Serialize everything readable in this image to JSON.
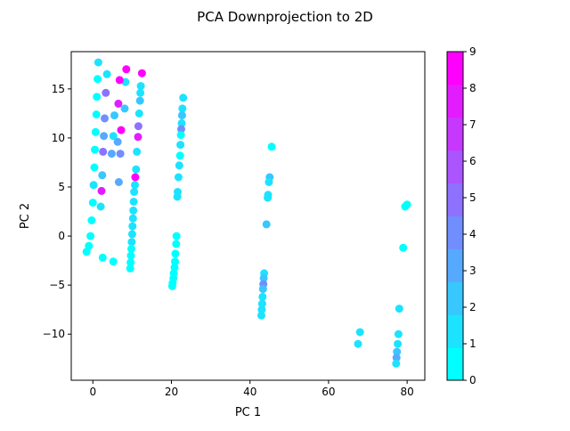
{
  "chart_data": {
    "type": "scatter",
    "title": "PCA Downprojection to 2D",
    "xlabel": "PC 1",
    "ylabel": "PC 2",
    "xlim": [
      -5.5,
      84.5
    ],
    "ylim": [
      -14.7,
      18.8
    ],
    "xticks": [
      0,
      20,
      40,
      60,
      80
    ],
    "yticks": [
      -10,
      -5,
      0,
      5,
      10,
      15
    ],
    "grid": false,
    "legend": "none",
    "colorbar": {
      "label": "",
      "min": 0,
      "max": 9,
      "ticks": [
        0,
        1,
        2,
        3,
        4,
        5,
        6,
        7,
        8,
        9
      ],
      "colormap": "cool",
      "bands": [
        "#00ffff",
        "#1ce3ff",
        "#38c7ff",
        "#55aaff",
        "#718eff",
        "#8e71ff",
        "#aa55ff",
        "#c738ff",
        "#e31cff",
        "#ff00ff"
      ]
    },
    "points": [
      {
        "x": 80,
        "y": 3.2,
        "c": 0
      },
      {
        "x": 79.5,
        "y": 3.0,
        "c": 0
      },
      {
        "x": 79,
        "y": -1.2,
        "c": 0
      },
      {
        "x": 78,
        "y": -7.4,
        "c": 1
      },
      {
        "x": 77.8,
        "y": -10.0,
        "c": 1
      },
      {
        "x": 77.6,
        "y": -11.0,
        "c": 1
      },
      {
        "x": 77.4,
        "y": -11.8,
        "c": 2
      },
      {
        "x": 77.3,
        "y": -12.4,
        "c": 3
      },
      {
        "x": 77.2,
        "y": -13.0,
        "c": 1
      },
      {
        "x": 68,
        "y": -9.8,
        "c": 1
      },
      {
        "x": 67.5,
        "y": -11.0,
        "c": 1
      },
      {
        "x": 45.5,
        "y": 9.1,
        "c": 0
      },
      {
        "x": 45,
        "y": 6.0,
        "c": 2
      },
      {
        "x": 44.8,
        "y": 5.5,
        "c": 1
      },
      {
        "x": 44.6,
        "y": 4.2,
        "c": 1
      },
      {
        "x": 44.5,
        "y": 3.9,
        "c": 1
      },
      {
        "x": 44.2,
        "y": 1.2,
        "c": 2
      },
      {
        "x": 43.6,
        "y": -3.8,
        "c": 1
      },
      {
        "x": 43.5,
        "y": -4.3,
        "c": 2
      },
      {
        "x": 43.4,
        "y": -4.9,
        "c": 4
      },
      {
        "x": 43.3,
        "y": -5.4,
        "c": 2
      },
      {
        "x": 43.2,
        "y": -6.2,
        "c": 1
      },
      {
        "x": 43.1,
        "y": -6.9,
        "c": 1
      },
      {
        "x": 43.0,
        "y": -7.5,
        "c": 1
      },
      {
        "x": 42.9,
        "y": -8.1,
        "c": 1
      },
      {
        "x": 23,
        "y": 14.1,
        "c": 1
      },
      {
        "x": 22.8,
        "y": 13.0,
        "c": 1
      },
      {
        "x": 22.7,
        "y": 12.3,
        "c": 2
      },
      {
        "x": 22.6,
        "y": 11.5,
        "c": 1
      },
      {
        "x": 22.5,
        "y": 10.9,
        "c": 4
      },
      {
        "x": 22.4,
        "y": 10.3,
        "c": 0
      },
      {
        "x": 22.3,
        "y": 9.3,
        "c": 1
      },
      {
        "x": 22.2,
        "y": 8.2,
        "c": 0
      },
      {
        "x": 22.0,
        "y": 7.2,
        "c": 1
      },
      {
        "x": 21.8,
        "y": 6.0,
        "c": 1
      },
      {
        "x": 21.6,
        "y": 4.5,
        "c": 1
      },
      {
        "x": 21.5,
        "y": 4.0,
        "c": 1
      },
      {
        "x": 21.3,
        "y": 0.0,
        "c": 0
      },
      {
        "x": 21.2,
        "y": -0.8,
        "c": 0
      },
      {
        "x": 21.0,
        "y": -1.8,
        "c": 0
      },
      {
        "x": 20.9,
        "y": -2.6,
        "c": 0
      },
      {
        "x": 20.8,
        "y": -3.2,
        "c": 0
      },
      {
        "x": 20.6,
        "y": -3.8,
        "c": 0
      },
      {
        "x": 20.5,
        "y": -4.3,
        "c": 0
      },
      {
        "x": 20.3,
        "y": -4.8,
        "c": 0
      },
      {
        "x": 20.2,
        "y": -5.1,
        "c": 0
      },
      {
        "x": 12.5,
        "y": 16.6,
        "c": 9
      },
      {
        "x": 12.2,
        "y": 15.3,
        "c": 1
      },
      {
        "x": 12.1,
        "y": 14.6,
        "c": 1
      },
      {
        "x": 12.0,
        "y": 13.8,
        "c": 2
      },
      {
        "x": 11.8,
        "y": 12.5,
        "c": 1
      },
      {
        "x": 11.6,
        "y": 11.2,
        "c": 5
      },
      {
        "x": 11.5,
        "y": 10.1,
        "c": 8
      },
      {
        "x": 11.2,
        "y": 8.6,
        "c": 1
      },
      {
        "x": 11.0,
        "y": 6.8,
        "c": 1
      },
      {
        "x": 10.8,
        "y": 6.0,
        "c": 9
      },
      {
        "x": 10.7,
        "y": 5.2,
        "c": 1
      },
      {
        "x": 10.5,
        "y": 4.5,
        "c": 1
      },
      {
        "x": 10.4,
        "y": 3.5,
        "c": 1
      },
      {
        "x": 10.3,
        "y": 2.6,
        "c": 1
      },
      {
        "x": 10.2,
        "y": 1.8,
        "c": 1
      },
      {
        "x": 10.1,
        "y": 1.0,
        "c": 1
      },
      {
        "x": 10.0,
        "y": 0.2,
        "c": 1
      },
      {
        "x": 9.9,
        "y": -0.6,
        "c": 1
      },
      {
        "x": 9.8,
        "y": -1.3,
        "c": 0
      },
      {
        "x": 9.7,
        "y": -2.0,
        "c": 0
      },
      {
        "x": 9.6,
        "y": -2.7,
        "c": 0
      },
      {
        "x": 9.5,
        "y": -3.3,
        "c": 0
      },
      {
        "x": 8.5,
        "y": 17.0,
        "c": 9
      },
      {
        "x": 8.3,
        "y": 15.7,
        "c": 1
      },
      {
        "x": 8.1,
        "y": 13.0,
        "c": 2
      },
      {
        "x": 6.8,
        "y": 15.9,
        "c": 9
      },
      {
        "x": 6.5,
        "y": 13.5,
        "c": 8
      },
      {
        "x": 7.2,
        "y": 10.8,
        "c": 9
      },
      {
        "x": 6.3,
        "y": 9.6,
        "c": 3
      },
      {
        "x": 7.0,
        "y": 8.4,
        "c": 4
      },
      {
        "x": 6.6,
        "y": 5.5,
        "c": 3
      },
      {
        "x": 5.5,
        "y": 12.3,
        "c": 2
      },
      {
        "x": 5.2,
        "y": 10.2,
        "c": 1
      },
      {
        "x": 4.8,
        "y": 8.4,
        "c": 3
      },
      {
        "x": 3.6,
        "y": 16.5,
        "c": 1
      },
      {
        "x": 3.3,
        "y": 14.6,
        "c": 5
      },
      {
        "x": 3.0,
        "y": 12.0,
        "c": 4
      },
      {
        "x": 2.8,
        "y": 10.2,
        "c": 3
      },
      {
        "x": 2.6,
        "y": 8.6,
        "c": 5
      },
      {
        "x": 2.4,
        "y": 6.2,
        "c": 2
      },
      {
        "x": 2.2,
        "y": 4.6,
        "c": 8
      },
      {
        "x": 2.0,
        "y": 3.0,
        "c": 1
      },
      {
        "x": 1.4,
        "y": 17.7,
        "c": 1
      },
      {
        "x": 1.2,
        "y": 16.0,
        "c": 0
      },
      {
        "x": 1.0,
        "y": 14.2,
        "c": 0
      },
      {
        "x": 0.9,
        "y": 12.4,
        "c": 0
      },
      {
        "x": 0.7,
        "y": 10.6,
        "c": 0
      },
      {
        "x": 0.5,
        "y": 8.8,
        "c": 0
      },
      {
        "x": 0.4,
        "y": 7.0,
        "c": 0
      },
      {
        "x": 0.2,
        "y": 5.2,
        "c": 1
      },
      {
        "x": 0.0,
        "y": 3.4,
        "c": 0
      },
      {
        "x": -0.3,
        "y": 1.6,
        "c": 0
      },
      {
        "x": -0.6,
        "y": 0.0,
        "c": 0
      },
      {
        "x": -1.0,
        "y": -1.0,
        "c": 0
      },
      {
        "x": -1.6,
        "y": -1.6,
        "c": 0
      },
      {
        "x": 2.5,
        "y": -2.2,
        "c": 0
      },
      {
        "x": 5.2,
        "y": -2.6,
        "c": 0
      }
    ]
  }
}
